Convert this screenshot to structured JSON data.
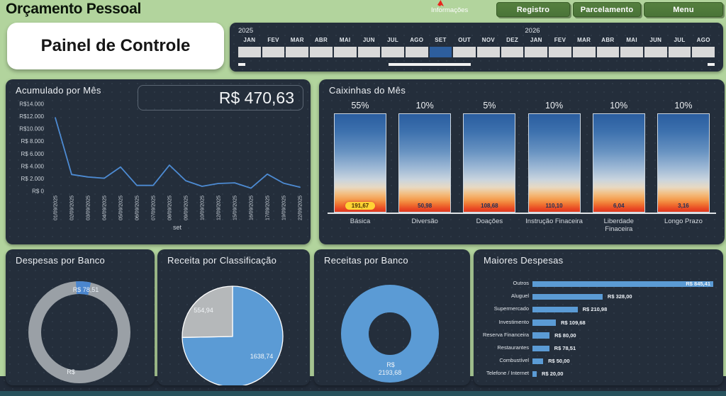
{
  "header": {
    "title": "Orçamento Pessoal",
    "info_label": "Informações",
    "buttons": [
      {
        "label": "Registro"
      },
      {
        "label": "Parcelamento"
      },
      {
        "label": "Menu"
      }
    ]
  },
  "control_panel": {
    "title": "Painel de Controle"
  },
  "timeline": {
    "years": [
      {
        "label": "2025",
        "month_index": 0
      },
      {
        "label": "2026",
        "month_index": 12
      }
    ],
    "months": [
      "JAN",
      "FEV",
      "MAR",
      "ABR",
      "MAI",
      "JUN",
      "JUL",
      "AGO",
      "SET",
      "OUT",
      "NOV",
      "DEZ",
      "JAN",
      "FEV",
      "MAR",
      "ABR",
      "MAI",
      "JUN",
      "JUL",
      "AGO"
    ],
    "selected_index": 8,
    "selected_color": "#2d5e9d"
  },
  "accumulated": {
    "title": "Acumulado por Mês",
    "total": "R$ 470,63",
    "chart": {
      "type": "line",
      "x": [
        "01/09/2025",
        "02/09/2025",
        "03/09/2025",
        "04/09/2025",
        "05/09/2025",
        "06/09/2025",
        "07/09/2025",
        "08/09/2025",
        "09/09/2025",
        "10/09/2025",
        "12/09/2025",
        "15/09/2025",
        "16/09/2025",
        "17/09/2025",
        "19/09/2025",
        "22/09/2025"
      ],
      "values": [
        11800,
        2700,
        2300,
        2100,
        3900,
        950,
        950,
        4200,
        1700,
        800,
        1250,
        1350,
        500,
        2750,
        1300,
        650
      ],
      "y_ticks": [
        "R$14.000",
        "R$12.000",
        "R$10.000",
        "R$ 8.000",
        "R$ 6.000",
        "R$ 4.000",
        "R$ 2.000",
        "R$ 0"
      ],
      "ymax": 14000,
      "xlabel": "set",
      "line_color": "#4d8bd3"
    }
  },
  "caixinhas": {
    "title": "Caixinhas do Mês",
    "chart_type": "bar",
    "items": [
      {
        "pct": "55%",
        "value": "191,67",
        "label": "Básica",
        "highlight": true
      },
      {
        "pct": "10%",
        "value": "50,98",
        "label": "Diversão",
        "highlight": false
      },
      {
        "pct": "5%",
        "value": "108,68",
        "label": "Doações",
        "highlight": false
      },
      {
        "pct": "10%",
        "value": "110,10",
        "label": "Instrução Finaceira",
        "highlight": false
      },
      {
        "pct": "10%",
        "value": "6,04",
        "label": "Liberdade\nFinaceira",
        "highlight": false
      },
      {
        "pct": "10%",
        "value": "3,16",
        "label": "Longo Prazo",
        "highlight": false
      }
    ]
  },
  "despesas_banco": {
    "title": "Despesas por Banco",
    "chart": {
      "type": "donut",
      "highlight_label": "R$ 78,51",
      "highlight_color": "#4b86ce",
      "ring_color": "#9aa0a6",
      "segment_start_deg": -4,
      "segment_end_deg": 13,
      "bottom_label": "R$"
    }
  },
  "receita_classificacao": {
    "title": "Receita por Classificação",
    "chart": {
      "type": "pie",
      "slices": [
        {
          "label": "1638,74",
          "value": 1638.74,
          "color": "#5b9bd5"
        },
        {
          "label": "554,94",
          "value": 554.94,
          "color": "#b5b8ba"
        }
      ]
    }
  },
  "receitas_banco": {
    "title": "Receitas por Banco",
    "chart": {
      "type": "donut",
      "color": "#5b9bd5",
      "center_label_line1": "R$",
      "center_label_line2": "2193,68"
    }
  },
  "maiores_despesas": {
    "title": "Maiores Despesas",
    "chart": {
      "type": "bar-horizontal",
      "bar_color": "#5b9bd5",
      "rows": [
        {
          "label": "Outros",
          "value": 845.41,
          "display": "R$ 845,41",
          "label_inside": true
        },
        {
          "label": "Aluguel",
          "value": 328.0,
          "display": "R$ 328,00",
          "label_inside": false
        },
        {
          "label": "Supermercado",
          "value": 210.98,
          "display": "R$ 210,98",
          "label_inside": false
        },
        {
          "label": "Investimento",
          "value": 109.68,
          "display": "R$ 109,68",
          "label_inside": false
        },
        {
          "label": "Reserva Financeira",
          "value": 80.0,
          "display": "R$ 80,00",
          "label_inside": false
        },
        {
          "label": "Restaurantes",
          "value": 78.51,
          "display": "R$ 78,51",
          "label_inside": false
        },
        {
          "label": "Combustível",
          "value": 50.0,
          "display": "R$ 50,00",
          "label_inside": false
        },
        {
          "label": "Telefone / Internet",
          "value": 20.0,
          "display": "R$ 20,00",
          "label_inside": false
        }
      ]
    }
  },
  "colors": {
    "page_green": "#b2d49d",
    "panel_dark": "#242e3b",
    "button_green": "#4e7c3b",
    "accent_blue": "#5b9bd5",
    "line_blue": "#4d8bd3",
    "selected_month_blue": "#2d5e9d",
    "donut_gray": "#9aa0a6",
    "highlight_yellow": "#ffd234"
  }
}
